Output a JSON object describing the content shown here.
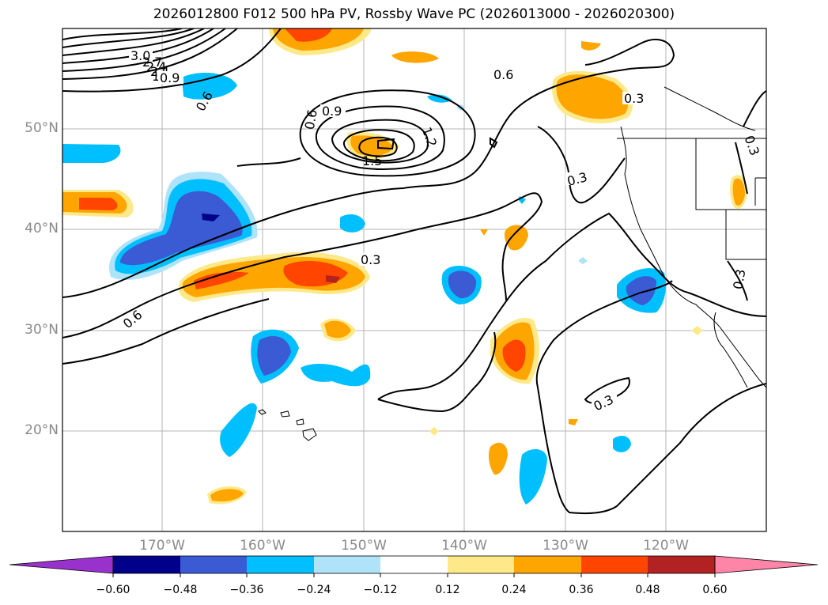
{
  "title": "2026012800 F012 500 hPa PV, Rossby Wave PC (2026013000 - 2026020300)",
  "lat_labels": [
    "50°N",
    "40°N",
    "30°N",
    "20°N"
  ],
  "lon_labels": [
    "170°W",
    "160°W",
    "150°W",
    "140°W",
    "130°W",
    "120°W"
  ],
  "colorbar": {
    "ticks": [
      "−0.60",
      "−0.48",
      "−0.36",
      "−0.24",
      "−0.12",
      "0.12",
      "0.24",
      "0.36",
      "0.48",
      "0.60"
    ],
    "colors": [
      "#9932cc",
      "#00008b",
      "#3a5bd4",
      "#00bfff",
      "#aee3fa",
      "#ffffff",
      "#fde98a",
      "#ffa500",
      "#ff4500",
      "#b22222",
      "#ff85a8"
    ]
  },
  "contour_labels": [
    "3.0",
    "2.7",
    "2.4",
    "2.1",
    "1.8",
    "0.9",
    "0.6",
    "0.6",
    "0.6",
    "0.9",
    "1.2",
    "1.5",
    "0.3",
    "0.3",
    "0.3",
    "0.3",
    "0.3",
    "0.6",
    "0.3"
  ]
}
